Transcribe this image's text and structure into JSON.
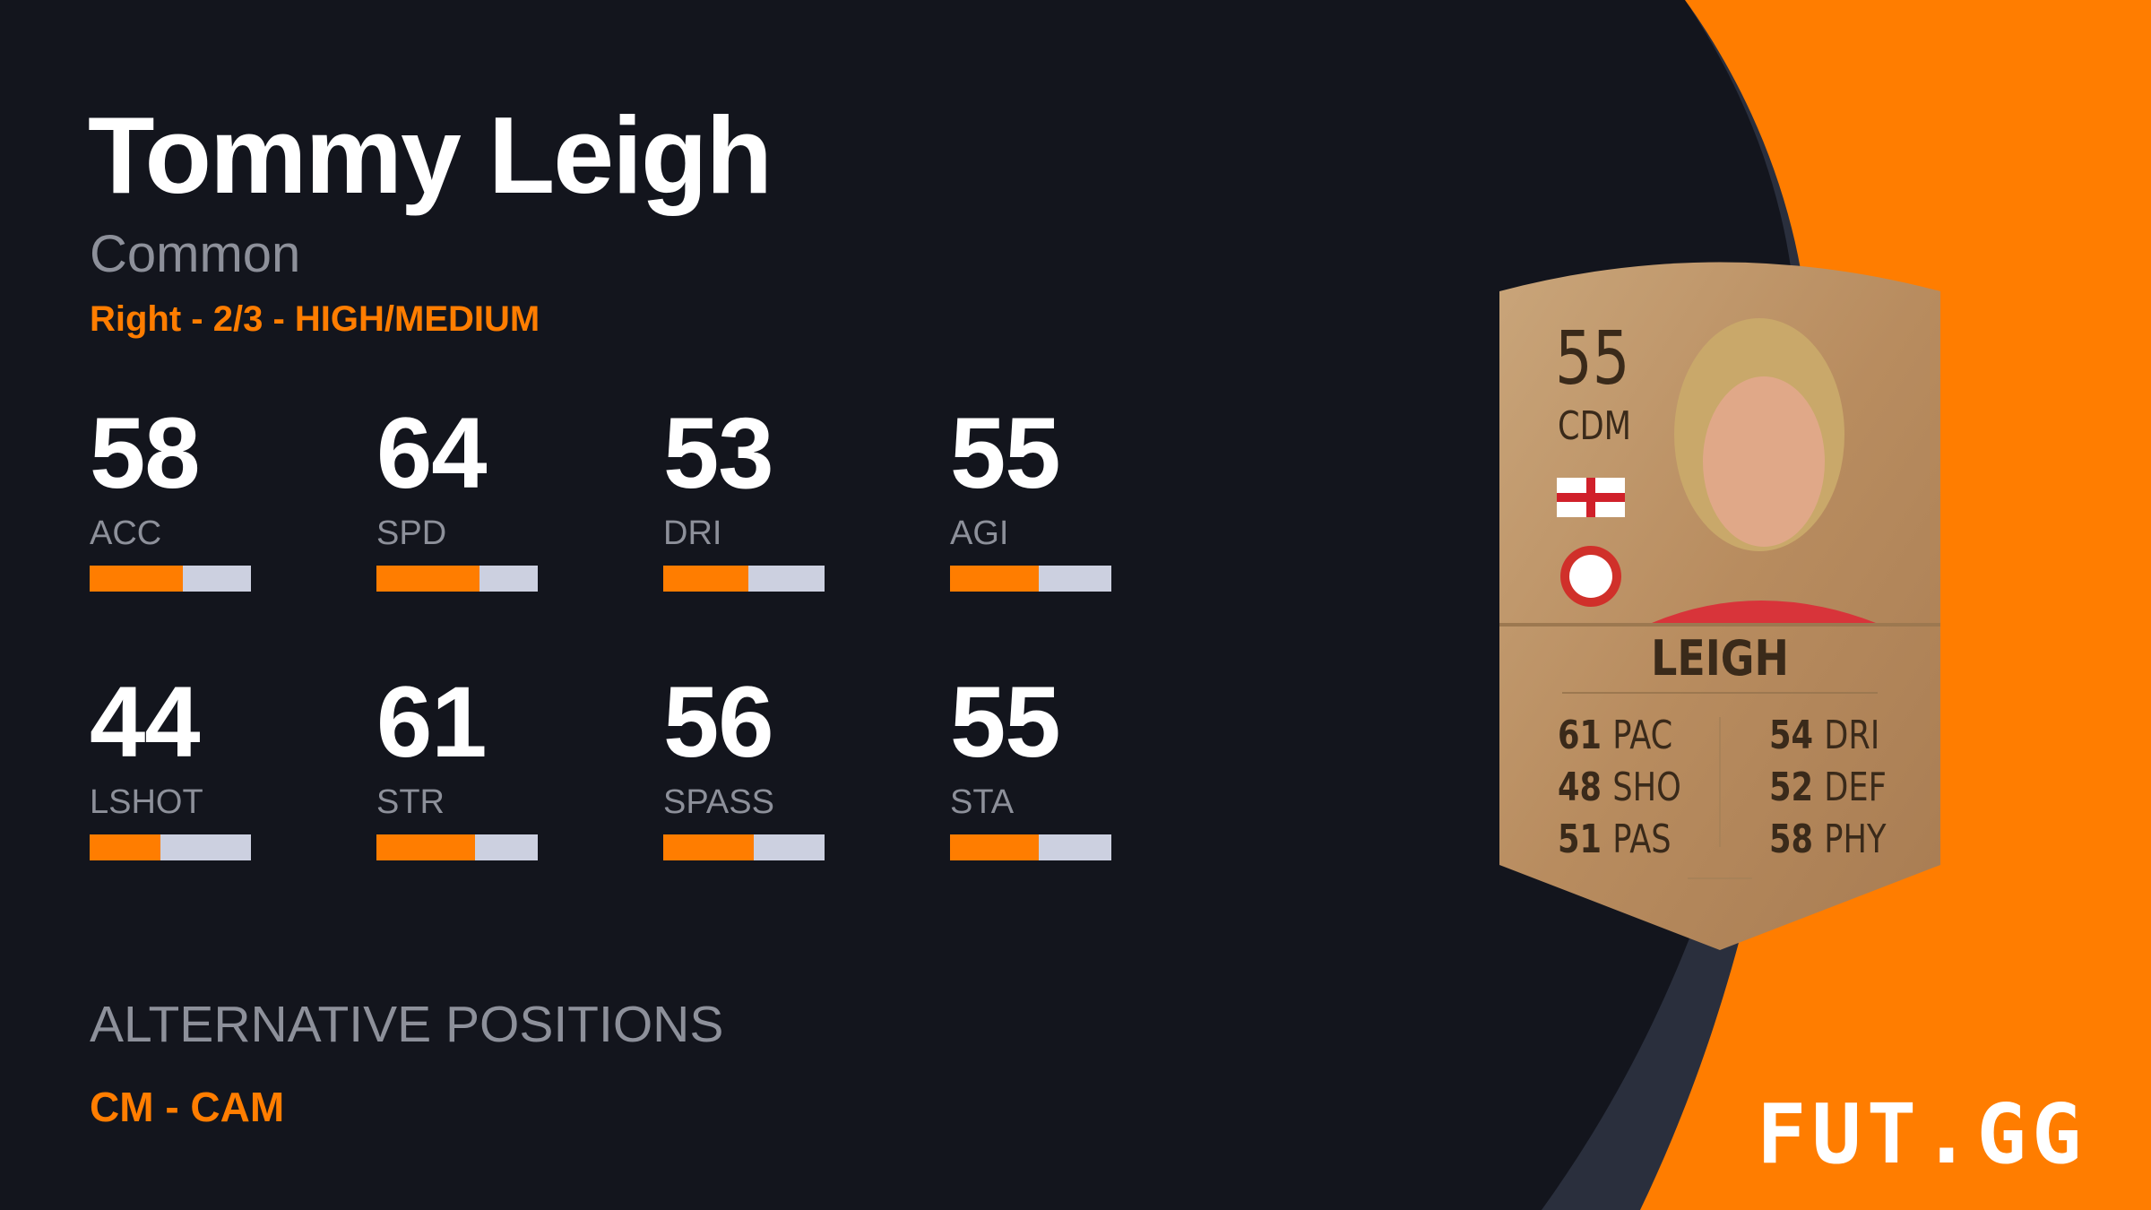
{
  "player": {
    "name": "Tommy Leigh",
    "rarity": "Common",
    "info": "Right - 2/3 - HIGH/MEDIUM"
  },
  "stats": [
    {
      "value": "58",
      "label": "ACC",
      "fraction": 0.58
    },
    {
      "value": "64",
      "label": "SPD",
      "fraction": 0.64
    },
    {
      "value": "53",
      "label": "DRI",
      "fraction": 0.53
    },
    {
      "value": "55",
      "label": "AGI",
      "fraction": 0.55
    },
    {
      "value": "44",
      "label": "LSHOT",
      "fraction": 0.44
    },
    {
      "value": "61",
      "label": "STR",
      "fraction": 0.61
    },
    {
      "value": "56",
      "label": "SPASS",
      "fraction": 0.56
    },
    {
      "value": "55",
      "label": "STA",
      "fraction": 0.55
    }
  ],
  "alternative_positions": {
    "title": "ALTERNATIVE POSITIONS",
    "value": "CM - CAM"
  },
  "card": {
    "rating": "55",
    "position": "CDM",
    "name": "LEIGH",
    "nation_flag": "england-flag-icon",
    "club_badge": "club-crest-icon",
    "attributes": [
      {
        "value": "61",
        "label": "PAC"
      },
      {
        "value": "48",
        "label": "SHO"
      },
      {
        "value": "51",
        "label": "PAS"
      },
      {
        "value": "54",
        "label": "DRI"
      },
      {
        "value": "52",
        "label": "DEF"
      },
      {
        "value": "58",
        "label": "PHY"
      }
    ]
  },
  "logo": "FUT.GG",
  "colors": {
    "accent": "#ff7d00",
    "background": "#13151d",
    "bar_track": "#ccd0e0",
    "stripe": "#2a2f3d"
  }
}
